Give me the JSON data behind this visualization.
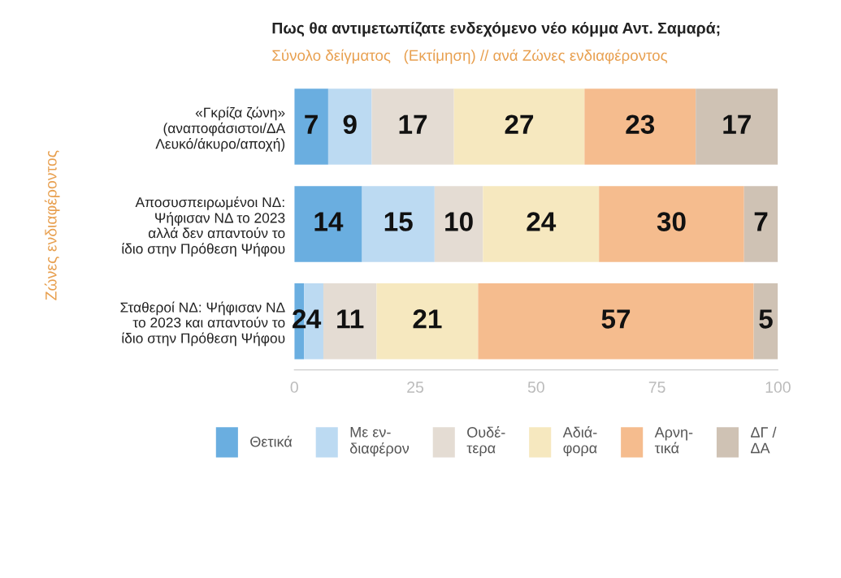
{
  "chart_data": {
    "type": "bar",
    "orientation": "horizontal",
    "stacked": true,
    "title": "Πως θα αντιμετωπίζατε ενδεχόμενο νέο κόμμα Αντ. Σαμαρά;",
    "subtitle": "Σύνολο δείγματος   (Εκτίμηση) // ανά Ζώνες ενδιαφέροντος",
    "ylabel": "Ζώνες ενδιαφέροντος",
    "categories": [
      "«Γκρίζα ζώνη»\n(αναποφάσιστοι/ΔΑ\nΛευκό/άκυρο/αποχή)",
      "Αποσυσπειρωμένοι ΝΔ:\nΨήφισαν ΝΔ το 2023\nαλλά δεν απαντούν το\nίδιο στην Πρόθεση Ψήφου",
      "Σταθεροί ΝΔ: Ψήφισαν ΝΔ\nτο 2023 και απαντούν το\nίδιο στην Πρόθεση Ψήφου"
    ],
    "series": [
      {
        "name": "Θετικά",
        "color": "#6aaee0",
        "values": [
          7,
          14,
          2
        ]
      },
      {
        "name": "Με εν-\nδιαφέρον",
        "color": "#bcdaf2",
        "values": [
          9,
          15,
          4
        ]
      },
      {
        "name": "Ουδέ-\nτερα",
        "color": "#e4dcd3",
        "values": [
          17,
          10,
          11
        ]
      },
      {
        "name": "Αδιά-\nφορα",
        "color": "#f6e8bf",
        "values": [
          27,
          24,
          21
        ]
      },
      {
        "name": "Αρνη-\nτικά",
        "color": "#f5bc8e",
        "values": [
          23,
          30,
          57
        ]
      },
      {
        "name": "ΔΓ /\nΔΑ",
        "color": "#cfc2b4",
        "values": [
          17,
          7,
          5
        ]
      }
    ],
    "xlim": [
      0,
      100
    ],
    "xticks": [
      0,
      25,
      50,
      75,
      100
    ],
    "data_labels": true,
    "legend": "bottom",
    "grid": false
  }
}
